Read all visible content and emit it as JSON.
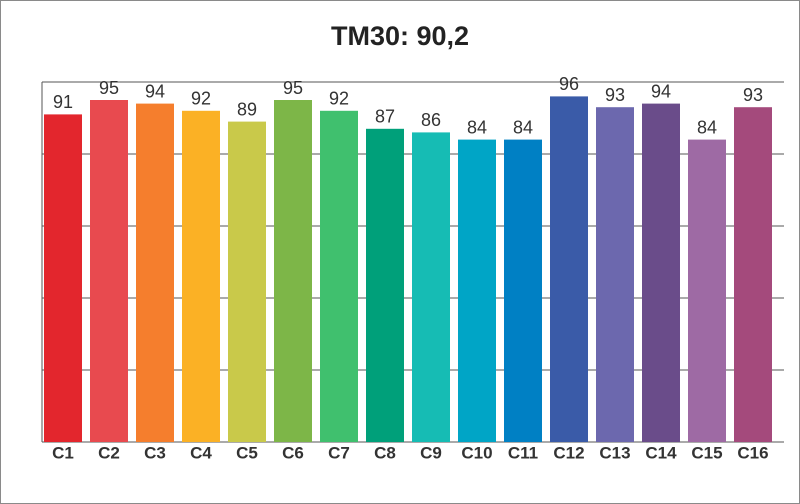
{
  "chart_data": {
    "type": "bar",
    "title": "TM30: 90,2",
    "categories": [
      "C1",
      "C2",
      "C3",
      "C4",
      "C5",
      "C6",
      "C7",
      "C8",
      "C9",
      "C10",
      "C11",
      "C12",
      "C13",
      "C14",
      "C15",
      "C16"
    ],
    "values": [
      91,
      95,
      94,
      92,
      89,
      95,
      92,
      87,
      86,
      84,
      84,
      96,
      93,
      94,
      84,
      93
    ],
    "colors": [
      "#e3262d",
      "#e84a4f",
      "#f57e2d",
      "#fbb125",
      "#c9c94a",
      "#7db648",
      "#40c06e",
      "#00a07a",
      "#16bcb4",
      "#00a5c6",
      "#0080c4",
      "#3a5ba8",
      "#6c68ae",
      "#6a4c8a",
      "#9e6aa4",
      "#a44a7c"
    ],
    "ylim": [
      0,
      100
    ],
    "yticks": [
      0,
      20,
      40,
      60,
      80,
      100
    ],
    "grid": true
  }
}
